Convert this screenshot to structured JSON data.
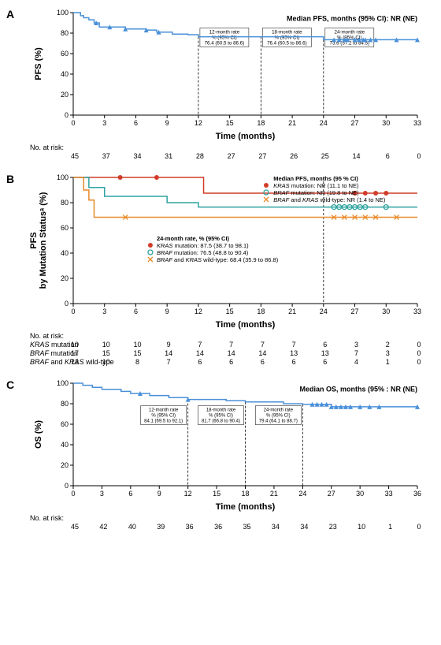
{
  "colors": {
    "line_blue": "#4a90d9",
    "kras_red": "#d13d2a",
    "braf_teal": "#2fa3a0",
    "wt_orange": "#e98a2a",
    "axis": "#000000",
    "tick": "#000000",
    "bg": "#ffffff"
  },
  "panelA": {
    "label": "A",
    "ylabel": "PFS (%)",
    "xlabel": "Time (months)",
    "median_text": "Median PFS, months (95% CI): NR (NE)",
    "xlim": [
      0,
      33
    ],
    "xtick_step": 3,
    "ylim": [
      0,
      100
    ],
    "ytick_step": 20,
    "curve": [
      [
        0,
        100
      ],
      [
        0.5,
        100
      ],
      [
        0.7,
        97
      ],
      [
        1,
        95
      ],
      [
        1.5,
        93
      ],
      [
        2,
        90
      ],
      [
        2.5,
        86
      ],
      [
        5,
        84
      ],
      [
        7,
        83
      ],
      [
        8,
        81
      ],
      [
        9.5,
        79
      ],
      [
        11,
        78.5
      ],
      [
        12,
        76.4
      ],
      [
        18,
        76.4
      ],
      [
        24,
        73.6
      ],
      [
        33,
        73.6
      ]
    ],
    "censor_x": [
      2.2,
      3.5,
      5,
      7,
      8.2,
      25,
      25.5,
      26,
      26.3,
      27,
      27.4,
      27.8,
      28,
      28.5,
      29,
      31,
      33
    ],
    "milestones": [
      {
        "x": 12,
        "lines": [
          "12-month rate",
          "% (95% CI)",
          "76.4 (60.5 to 86.6)"
        ]
      },
      {
        "x": 18,
        "lines": [
          "18-month rate",
          "% (95% CI)",
          "76.4 (60.5 to 86.6)"
        ]
      },
      {
        "x": 24,
        "lines": [
          "24-month rate",
          "% (95% CI)",
          "73.6 (57.2 to 84.5)"
        ]
      }
    ],
    "risk": {
      "header": "No. at risk:",
      "ticks": [
        0,
        3,
        6,
        9,
        12,
        15,
        18,
        21,
        24,
        27,
        30,
        33
      ],
      "rows": [
        {
          "label": "",
          "vals": [
            45,
            37,
            34,
            31,
            28,
            27,
            27,
            26,
            25,
            14,
            6,
            0
          ]
        }
      ]
    }
  },
  "panelB": {
    "label": "B",
    "ylabel": "PFS\nby Mutation Statusᵃ (%)",
    "xlabel": "Time (months)",
    "legend_top": [
      "Median PFS, months (95 % CI)",
      "KRAS mutation: NR (11.1 to NE)",
      "BRAF mutation: NR (19.8 to NE)",
      "BRAF and KRAS wild-type: NR (1.4 to NE)"
    ],
    "legend_24": [
      "24-month rate, % (95% CI)",
      "KRAS mutation: 87.5 (38.7 to 98.1)",
      "BRAF mutation: 76.5 (48.8 to 90.4)",
      "BRAF and KRAS wild-type: 68.4 (35.9 to 86.8)"
    ],
    "xlim": [
      0,
      33
    ],
    "xtick_step": 3,
    "ylim": [
      0,
      100
    ],
    "ytick_step": 20,
    "curves": {
      "kras": {
        "color_key": "kras_red",
        "marker": "dot",
        "pts": [
          [
            0,
            100
          ],
          [
            8,
            100
          ],
          [
            12,
            100
          ],
          [
            12.5,
            87.5
          ],
          [
            33,
            87.5
          ]
        ],
        "censor": [
          4.5,
          8,
          27,
          28,
          29,
          30
        ]
      },
      "braf": {
        "color_key": "braf_teal",
        "marker": "circle",
        "pts": [
          [
            0,
            100
          ],
          [
            1,
            100
          ],
          [
            1.5,
            92
          ],
          [
            3,
            85
          ],
          [
            9,
            80
          ],
          [
            12,
            76.5
          ],
          [
            33,
            76.5
          ]
        ],
        "censor": [
          25,
          25.5,
          26,
          26.5,
          27,
          27.5,
          28,
          30
        ]
      },
      "wt": {
        "color_key": "wt_orange",
        "marker": "x",
        "pts": [
          [
            0,
            100
          ],
          [
            0.5,
            100
          ],
          [
            1,
            90
          ],
          [
            1.5,
            82
          ],
          [
            2,
            68.4
          ],
          [
            33,
            68.4
          ]
        ],
        "censor": [
          5,
          25,
          26,
          27,
          28,
          29,
          31
        ]
      }
    },
    "dash_x": 24,
    "risk": {
      "header": "No. at risk:",
      "ticks": [
        0,
        3,
        6,
        9,
        12,
        15,
        18,
        21,
        24,
        27,
        30,
        33
      ],
      "rows": [
        {
          "label": "KRAS mutation",
          "vals": [
            10,
            10,
            10,
            9,
            7,
            7,
            7,
            7,
            6,
            3,
            2,
            0
          ]
        },
        {
          "label": "BRAF mutation",
          "vals": [
            17,
            15,
            15,
            14,
            14,
            14,
            14,
            13,
            13,
            7,
            3,
            0
          ]
        },
        {
          "label": "BRAF and KRAS wild-type",
          "vals": [
            13,
            10,
            8,
            7,
            6,
            6,
            6,
            6,
            6,
            4,
            1,
            0
          ]
        }
      ]
    }
  },
  "panelC": {
    "label": "C",
    "ylabel": "OS (%)",
    "xlabel": "Time (months)",
    "median_text": "Median OS, months (95% : NR (NE)",
    "xlim": [
      0,
      36
    ],
    "xtick_step": 3,
    "ylim": [
      0,
      100
    ],
    "ytick_step": 20,
    "curve": [
      [
        0,
        100
      ],
      [
        1,
        98
      ],
      [
        2,
        96
      ],
      [
        3,
        94
      ],
      [
        5,
        92
      ],
      [
        6,
        90
      ],
      [
        8,
        88
      ],
      [
        10,
        86
      ],
      [
        12,
        84.1
      ],
      [
        16,
        83
      ],
      [
        18,
        81.7
      ],
      [
        22,
        80
      ],
      [
        24,
        79.4
      ],
      [
        27,
        77
      ],
      [
        36,
        77
      ]
    ],
    "censor_x": [
      7,
      12,
      25,
      25.5,
      26,
      26.5,
      27,
      27.5,
      28,
      28.5,
      29,
      30,
      31,
      32,
      36
    ],
    "milestones": [
      {
        "x": 12,
        "lines": [
          "12-month rate",
          "% (95% CI)",
          "84.1 (69.5 to 92.1)"
        ]
      },
      {
        "x": 18,
        "lines": [
          "18-month rate",
          "% (95% CI)",
          "81.7 (66.8 to 90.4)"
        ]
      },
      {
        "x": 24,
        "lines": [
          "24-month rate",
          "% (95% CI)",
          "79.4 (64.1 to 88.7)"
        ]
      }
    ],
    "risk": {
      "header": "No. at risk:",
      "ticks": [
        0,
        3,
        6,
        9,
        12,
        15,
        18,
        21,
        24,
        27,
        30,
        33,
        36
      ],
      "rows": [
        {
          "label": "",
          "vals": [
            45,
            42,
            40,
            39,
            36,
            36,
            35,
            34,
            34,
            23,
            10,
            1,
            0
          ]
        }
      ]
    }
  }
}
